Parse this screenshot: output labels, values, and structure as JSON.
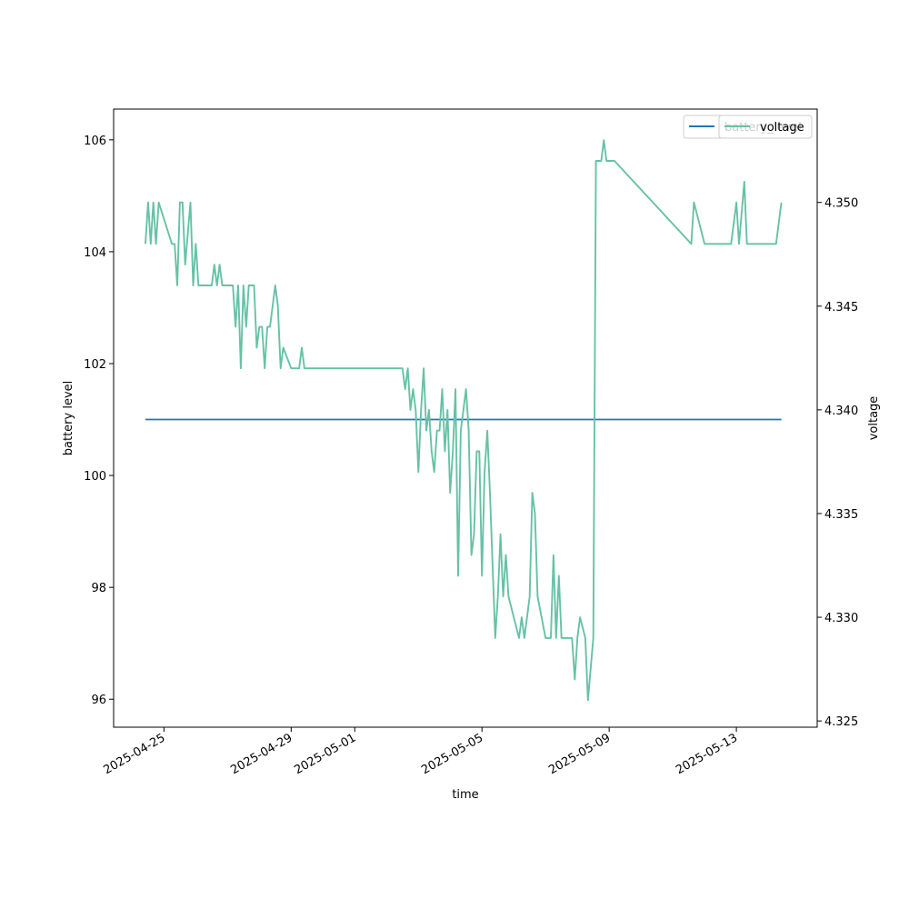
{
  "chart_data": {
    "type": "line",
    "title": "",
    "xlabel": "time",
    "ylabel_left": "battery level",
    "ylabel_right": "voltage",
    "x_ticks": [
      "2025-04-25",
      "2025-04-29",
      "2025-05-01",
      "2025-05-05",
      "2025-05-09",
      "2025-05-13"
    ],
    "y_left_ticks": [
      "96",
      "98",
      "100",
      "102",
      "104",
      "106"
    ],
    "y_right_ticks": [
      "4.325",
      "4.330",
      "4.335",
      "4.340",
      "4.345",
      "4.350"
    ],
    "xlim": [
      "2025-04-23T10:00",
      "2025-05-15T13:00"
    ],
    "ylim_left": [
      95.5,
      106.55
    ],
    "ylim_right": [
      4.3247,
      4.3545
    ],
    "legend_left": "top-right",
    "legend_right": "top-right",
    "grid": false,
    "series": [
      {
        "name": "battery_level",
        "axis": "left",
        "color": "#1f77b4",
        "points": [
          [
            "2025-04-24T10:00",
            101
          ],
          [
            "2025-05-14T10:00",
            101
          ]
        ]
      },
      {
        "name": "voltage",
        "axis": "right",
        "color": "#66c2a5",
        "points": [
          [
            "2025-04-24T10:00",
            4.348
          ],
          [
            "2025-04-24T12:00",
            4.35
          ],
          [
            "2025-04-24T14:00",
            4.348
          ],
          [
            "2025-04-24T16:00",
            4.35
          ],
          [
            "2025-04-24T18:00",
            4.348
          ],
          [
            "2025-04-24T20:00",
            4.35
          ],
          [
            "2025-04-25T06:00",
            4.348
          ],
          [
            "2025-04-25T08:00",
            4.348
          ],
          [
            "2025-04-25T10:00",
            4.346
          ],
          [
            "2025-04-25T12:00",
            4.35
          ],
          [
            "2025-04-25T14:00",
            4.35
          ],
          [
            "2025-04-25T16:00",
            4.347
          ],
          [
            "2025-04-25T20:00",
            4.35
          ],
          [
            "2025-04-25T22:00",
            4.346
          ],
          [
            "2025-04-26T00:00",
            4.348
          ],
          [
            "2025-04-26T02:00",
            4.346
          ],
          [
            "2025-04-26T12:00",
            4.346
          ],
          [
            "2025-04-26T14:00",
            4.347
          ],
          [
            "2025-04-26T16:00",
            4.346
          ],
          [
            "2025-04-26T18:00",
            4.347
          ],
          [
            "2025-04-26T20:00",
            4.346
          ],
          [
            "2025-04-27T04:00",
            4.346
          ],
          [
            "2025-04-27T06:00",
            4.344
          ],
          [
            "2025-04-27T08:00",
            4.346
          ],
          [
            "2025-04-27T10:00",
            4.342
          ],
          [
            "2025-04-27T12:00",
            4.346
          ],
          [
            "2025-04-27T14:00",
            4.344
          ],
          [
            "2025-04-27T16:00",
            4.346
          ],
          [
            "2025-04-27T20:00",
            4.346
          ],
          [
            "2025-04-27T22:00",
            4.343
          ],
          [
            "2025-04-28T00:00",
            4.344
          ],
          [
            "2025-04-28T02:00",
            4.344
          ],
          [
            "2025-04-28T04:00",
            4.342
          ],
          [
            "2025-04-28T06:00",
            4.344
          ],
          [
            "2025-04-28T08:00",
            4.344
          ],
          [
            "2025-04-28T12:00",
            4.346
          ],
          [
            "2025-04-28T14:00",
            4.345
          ],
          [
            "2025-04-28T16:00",
            4.342
          ],
          [
            "2025-04-28T18:00",
            4.343
          ],
          [
            "2025-04-29T00:00",
            4.342
          ],
          [
            "2025-04-29T06:00",
            4.342
          ],
          [
            "2025-04-29T08:00",
            4.343
          ],
          [
            "2025-04-29T10:00",
            4.342
          ],
          [
            "2025-04-30T00:00",
            4.342
          ],
          [
            "2025-04-30T02:00",
            4.342
          ],
          [
            "2025-04-30T20:00",
            4.342
          ],
          [
            "2025-05-01T00:00",
            4.342
          ],
          [
            "2025-05-01T16:00",
            4.342
          ],
          [
            "2025-05-02T12:00",
            4.342
          ],
          [
            "2025-05-02T14:00",
            4.341
          ],
          [
            "2025-05-02T16:00",
            4.342
          ],
          [
            "2025-05-02T18:00",
            4.34
          ],
          [
            "2025-05-02T20:00",
            4.341
          ],
          [
            "2025-05-02T22:00",
            4.34
          ],
          [
            "2025-05-03T00:00",
            4.337
          ],
          [
            "2025-05-03T02:00",
            4.34
          ],
          [
            "2025-05-03T04:00",
            4.342
          ],
          [
            "2025-05-03T06:00",
            4.339
          ],
          [
            "2025-05-03T08:00",
            4.34
          ],
          [
            "2025-05-03T10:00",
            4.338
          ],
          [
            "2025-05-03T12:00",
            4.337
          ],
          [
            "2025-05-03T14:00",
            4.339
          ],
          [
            "2025-05-03T16:00",
            4.339
          ],
          [
            "2025-05-03T18:00",
            4.341
          ],
          [
            "2025-05-03T20:00",
            4.338
          ],
          [
            "2025-05-03T22:00",
            4.34
          ],
          [
            "2025-05-04T00:00",
            4.336
          ],
          [
            "2025-05-04T02:00",
            4.338
          ],
          [
            "2025-05-04T04:00",
            4.341
          ],
          [
            "2025-05-04T06:00",
            4.332
          ],
          [
            "2025-05-04T08:00",
            4.339
          ],
          [
            "2025-05-04T10:00",
            4.34
          ],
          [
            "2025-05-04T12:00",
            4.341
          ],
          [
            "2025-05-04T14:00",
            4.339
          ],
          [
            "2025-05-04T16:00",
            4.333
          ],
          [
            "2025-05-04T18:00",
            4.334
          ],
          [
            "2025-05-04T20:00",
            4.338
          ],
          [
            "2025-05-04T22:00",
            4.338
          ],
          [
            "2025-05-05T00:00",
            4.332
          ],
          [
            "2025-05-05T02:00",
            4.337
          ],
          [
            "2025-05-05T04:00",
            4.339
          ],
          [
            "2025-05-05T06:00",
            4.336
          ],
          [
            "2025-05-05T10:00",
            4.329
          ],
          [
            "2025-05-05T12:00",
            4.331
          ],
          [
            "2025-05-05T14:00",
            4.334
          ],
          [
            "2025-05-05T16:00",
            4.331
          ],
          [
            "2025-05-05T18:00",
            4.333
          ],
          [
            "2025-05-05T20:00",
            4.331
          ],
          [
            "2025-05-06T04:00",
            4.329
          ],
          [
            "2025-05-06T06:00",
            4.33
          ],
          [
            "2025-05-06T08:00",
            4.329
          ],
          [
            "2025-05-06T12:00",
            4.331
          ],
          [
            "2025-05-06T14:00",
            4.336
          ],
          [
            "2025-05-06T16:00",
            4.335
          ],
          [
            "2025-05-06T18:00",
            4.331
          ],
          [
            "2025-05-07T00:00",
            4.329
          ],
          [
            "2025-05-07T04:00",
            4.329
          ],
          [
            "2025-05-07T06:00",
            4.333
          ],
          [
            "2025-05-07T08:00",
            4.329
          ],
          [
            "2025-05-07T10:00",
            4.332
          ],
          [
            "2025-05-07T12:00",
            4.329
          ],
          [
            "2025-05-07T16:00",
            4.329
          ],
          [
            "2025-05-07T20:00",
            4.329
          ],
          [
            "2025-05-07T22:00",
            4.327
          ],
          [
            "2025-05-08T00:00",
            4.329
          ],
          [
            "2025-05-08T02:00",
            4.33
          ],
          [
            "2025-05-08T06:00",
            4.329
          ],
          [
            "2025-05-08T08:00",
            4.326
          ],
          [
            "2025-05-08T12:00",
            4.329
          ],
          [
            "2025-05-08T14:00",
            4.352
          ],
          [
            "2025-05-08T18:00",
            4.352
          ],
          [
            "2025-05-08T20:00",
            4.353
          ],
          [
            "2025-05-08T22:00",
            4.352
          ],
          [
            "2025-05-09T04:00",
            4.352
          ],
          [
            "2025-05-11T14:00",
            4.348
          ],
          [
            "2025-05-11T16:00",
            4.35
          ],
          [
            "2025-05-12T00:00",
            4.348
          ],
          [
            "2025-05-12T20:00",
            4.348
          ],
          [
            "2025-05-13T00:00",
            4.35
          ],
          [
            "2025-05-13T02:00",
            4.348
          ],
          [
            "2025-05-13T06:00",
            4.351
          ],
          [
            "2025-05-13T08:00",
            4.348
          ],
          [
            "2025-05-14T06:00",
            4.348
          ],
          [
            "2025-05-14T10:00",
            4.35
          ]
        ]
      }
    ]
  }
}
